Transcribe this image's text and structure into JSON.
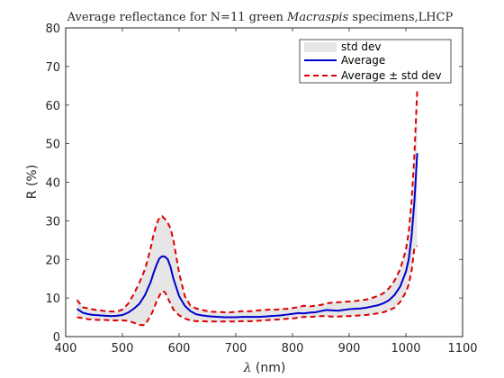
{
  "chart_data": {
    "type": "line",
    "title_prefix": "Average reflectance for N=11 green ",
    "title_italic": "Macraspis",
    "title_suffix": " specimens,LHCP",
    "xlabel_symbol": "λ",
    "xlabel_rest": " (nm)",
    "ylabel": "R (%)",
    "xlim": [
      400,
      1100
    ],
    "ylim": [
      0,
      80
    ],
    "xticks": [
      400,
      500,
      600,
      700,
      800,
      900,
      1000,
      1100
    ],
    "yticks": [
      0,
      10,
      20,
      30,
      40,
      50,
      60,
      70,
      80
    ],
    "grid": false,
    "legend_position": "top-right",
    "x": [
      420,
      430,
      440,
      450,
      460,
      470,
      480,
      490,
      500,
      510,
      520,
      530,
      540,
      550,
      555,
      560,
      565,
      570,
      575,
      580,
      585,
      590,
      600,
      610,
      620,
      630,
      640,
      650,
      660,
      670,
      680,
      690,
      700,
      710,
      720,
      730,
      740,
      750,
      760,
      770,
      780,
      790,
      800,
      810,
      820,
      830,
      840,
      850,
      860,
      870,
      880,
      890,
      900,
      910,
      920,
      930,
      940,
      950,
      960,
      970,
      980,
      990,
      1000,
      1005,
      1010,
      1015,
      1020
    ],
    "series": [
      {
        "name": "std dev",
        "style": "fill",
        "color": "#e6e6e6"
      },
      {
        "name": "Average",
        "style": "solid",
        "color": "#0000cc",
        "values": [
          7.2,
          6.2,
          5.8,
          5.6,
          5.5,
          5.4,
          5.3,
          5.4,
          5.6,
          6.2,
          7.2,
          8.5,
          10.8,
          14.2,
          16.5,
          18.5,
          20.2,
          20.8,
          20.7,
          20.0,
          18.0,
          15.0,
          10.5,
          8.0,
          6.6,
          5.8,
          5.5,
          5.3,
          5.2,
          5.1,
          5.0,
          5.0,
          5.0,
          5.1,
          5.1,
          5.1,
          5.1,
          5.2,
          5.3,
          5.4,
          5.5,
          5.7,
          5.9,
          6.1,
          6.0,
          6.2,
          6.3,
          6.6,
          6.9,
          6.8,
          6.7,
          6.9,
          7.1,
          7.2,
          7.3,
          7.5,
          7.8,
          8.1,
          8.6,
          9.4,
          10.8,
          13.0,
          16.8,
          20.0,
          26.0,
          35.0,
          47.5
        ]
      },
      {
        "name": "Average ± std dev",
        "style": "dashed",
        "color": "#dd0000",
        "upper": [
          9.5,
          7.6,
          7.3,
          7.0,
          6.8,
          6.6,
          6.5,
          6.5,
          7.0,
          8.5,
          11.0,
          14.0,
          17.5,
          23.0,
          26.5,
          29.0,
          30.8,
          31.2,
          30.5,
          29.5,
          28.0,
          25.0,
          16.5,
          10.5,
          8.0,
          7.3,
          6.9,
          6.6,
          6.4,
          6.4,
          6.3,
          6.3,
          6.4,
          6.6,
          6.6,
          6.6,
          6.8,
          6.9,
          7.0,
          7.0,
          7.1,
          7.2,
          7.4,
          7.6,
          8.0,
          7.8,
          8.0,
          8.2,
          8.6,
          8.8,
          8.9,
          9.0,
          9.1,
          9.2,
          9.4,
          9.6,
          10.0,
          10.5,
          11.2,
          12.5,
          14.5,
          17.5,
          22.5,
          27.0,
          35.0,
          47.0,
          64.0
        ],
        "lower": [
          5.0,
          4.8,
          4.5,
          4.4,
          4.3,
          4.3,
          4.2,
          4.2,
          4.2,
          4.1,
          3.6,
          3.0,
          3.0,
          5.5,
          7.0,
          9.0,
          10.5,
          11.8,
          11.5,
          10.0,
          8.5,
          7.0,
          5.5,
          4.7,
          4.2,
          4.0,
          4.0,
          3.9,
          3.9,
          3.9,
          3.9,
          3.9,
          3.9,
          4.0,
          4.0,
          4.0,
          4.1,
          4.2,
          4.3,
          4.4,
          4.5,
          4.6,
          4.7,
          4.9,
          5.1,
          5.1,
          5.2,
          5.3,
          5.3,
          5.2,
          5.2,
          5.3,
          5.3,
          5.4,
          5.5,
          5.6,
          5.8,
          6.0,
          6.3,
          6.8,
          7.5,
          9.0,
          11.5,
          13.5,
          17.0,
          23.0,
          23.5
        ]
      }
    ]
  }
}
